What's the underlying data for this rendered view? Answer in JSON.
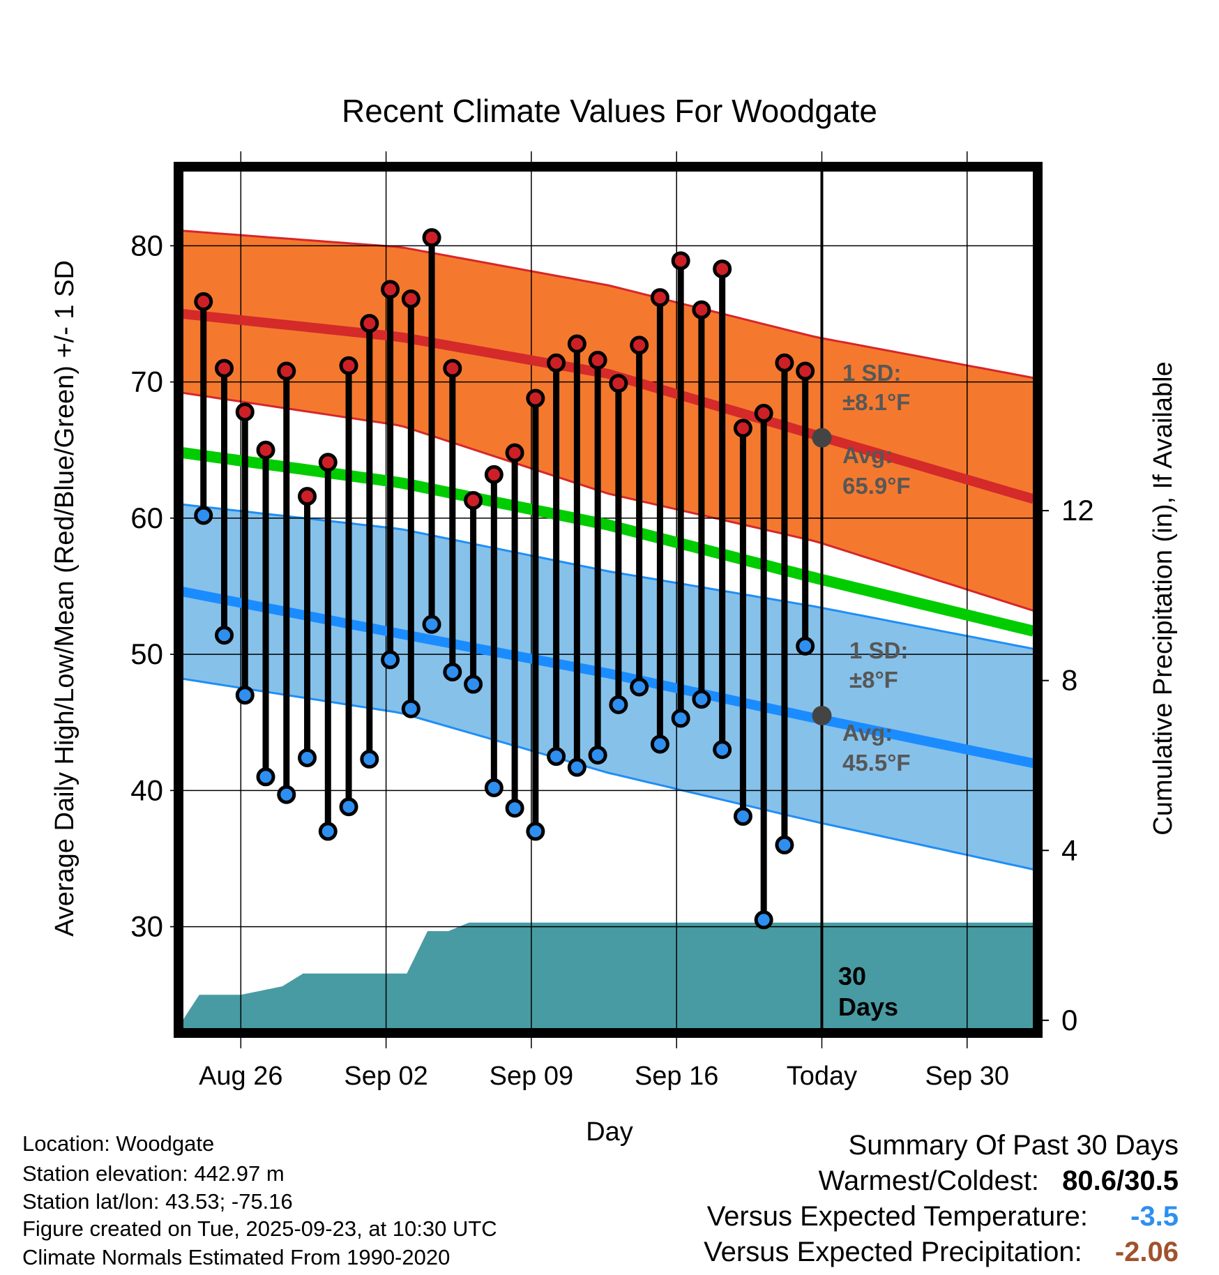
{
  "chart_data": {
    "type": "line",
    "title": "Recent Climate Values For Woodgate",
    "xlabel": "Day",
    "ylabel": "Average Daily High/Low/Mean (Red/Blue/Green) +/- 1 SD",
    "y2label": "Cumulative Precipitation (in), If Available",
    "xlim": [
      -0.5,
      40.5
    ],
    "ylim": [
      22.5,
      85.5
    ],
    "y2lim": [
      -0.2,
      20
    ],
    "x_ticks": [
      {
        "x": 2.3,
        "label": "Aug 26"
      },
      {
        "x": 9.3,
        "label": "Sep 02"
      },
      {
        "x": 16.3,
        "label": "Sep 09"
      },
      {
        "x": 23.3,
        "label": "Sep 16"
      },
      {
        "x": 30.3,
        "label": "Today"
      },
      {
        "x": 37.3,
        "label": "Sep 30"
      }
    ],
    "y_ticks": [
      30,
      40,
      50,
      60,
      70,
      80
    ],
    "y2_ticks": [
      0,
      4,
      8,
      12
    ],
    "today_x": 30.3,
    "normals_x": [
      -0.5,
      10,
      20,
      30,
      40.5
    ],
    "normal_high": [
      75,
      73.3,
      70.6,
      66.1,
      61.4
    ],
    "normal_high_upper": [
      81.1,
      79.9,
      77.1,
      73.3,
      70.3
    ],
    "normal_high_lower": [
      69.2,
      66.8,
      61.8,
      58.3,
      53.2
    ],
    "normal_mean": [
      64.8,
      62.6,
      59.5,
      55.6,
      51.7
    ],
    "normal_low": [
      54.6,
      51.5,
      48.6,
      45.3,
      42
    ],
    "normal_low_upper": [
      61,
      59.2,
      56.1,
      53.5,
      50.4
    ],
    "normal_low_lower": [
      48.2,
      45.7,
      41.3,
      37.7,
      34.2
    ],
    "days": [
      0.5,
      1.5,
      2.5,
      3.5,
      4.5,
      5.5,
      6.5,
      7.5,
      8.5,
      9.5,
      10.5,
      11.5,
      12.5,
      13.5,
      14.5,
      15.5,
      16.5,
      17.5,
      18.5,
      19.5,
      20.5,
      21.5,
      22.5,
      23.5,
      24.5,
      25.5,
      26.5,
      27.5,
      28.5,
      29.5
    ],
    "highs": [
      75.9,
      71,
      67.8,
      65,
      70.8,
      61.6,
      64.1,
      71.2,
      74.3,
      76.8,
      76.1,
      80.6,
      71,
      61.3,
      63.2,
      64.8,
      68.8,
      71.4,
      72.8,
      71.6,
      69.9,
      72.7,
      76.2,
      78.9,
      75.3,
      78.3,
      66.6,
      67.7,
      71.4,
      70.8
    ],
    "lows": [
      60.2,
      51.4,
      47,
      41,
      39.7,
      42.4,
      37,
      38.8,
      42.3,
      49.6,
      46,
      52.2,
      48.7,
      47.8,
      40.2,
      38.7,
      37,
      42.5,
      41.7,
      42.6,
      46.3,
      47.6,
      43.4,
      45.3,
      46.7,
      43,
      38.1,
      30.5,
      36,
      50.6
    ],
    "precip_x": [
      -0.5,
      0.3,
      2.3,
      3.3,
      4.3,
      5.3,
      9.3,
      10.3,
      11.3,
      12.3,
      13.3,
      40.5
    ],
    "precip_y": [
      0,
      0.6,
      0.6,
      0.7,
      0.8,
      1.1,
      1.1,
      1.1,
      2.1,
      2.1,
      2.3,
      2.3
    ],
    "annotations": {
      "high_sd_label": "1 SD:",
      "high_sd_value": "±8.1°F",
      "high_avg_label": "Avg:",
      "high_avg_value": "65.9°F",
      "low_sd_label": "1 SD:",
      "low_sd_value": "±8°F",
      "low_avg_label": "Avg:",
      "low_avg_value": "45.5°F",
      "precip_days_top": "30",
      "precip_days_bottom": "Days",
      "high_avg_point": 65.9,
      "low_avg_point": 45.5
    },
    "colors": {
      "high_band": "#f4792e",
      "high_edge": "#d6262a",
      "high_line": "#d42a2a",
      "mean_line": "#00cc00",
      "low_band": "#86c1ea",
      "low_edge": "#1f8ef5",
      "low_line": "#1a8cff",
      "precip": "#489ba3",
      "high_dot": "#cc2026",
      "low_dot": "#2e8ff0",
      "annotation": "#575757"
    }
  },
  "info": {
    "location": "Location: Woodgate",
    "elevation": "Station elevation: 442.97 m",
    "latlon": "Station lat/lon: 43.53; -75.16",
    "created": "Figure created on Tue, 2025-09-23, at 10:30 UTC",
    "normals": "Climate Normals Estimated From 1990-2020"
  },
  "summary": {
    "title": "Summary Of Past 30 Days",
    "warmest_coldest_label": "Warmest/Coldest:",
    "warmest_coldest_value": "80.6/30.5",
    "temp_label": "Versus Expected Temperature:",
    "temp_value": "-3.5",
    "temp_color": "#2e8ff0",
    "precip_label": "Versus Expected Precipitation:",
    "precip_value": "-2.06",
    "precip_color": "#a0522d"
  }
}
